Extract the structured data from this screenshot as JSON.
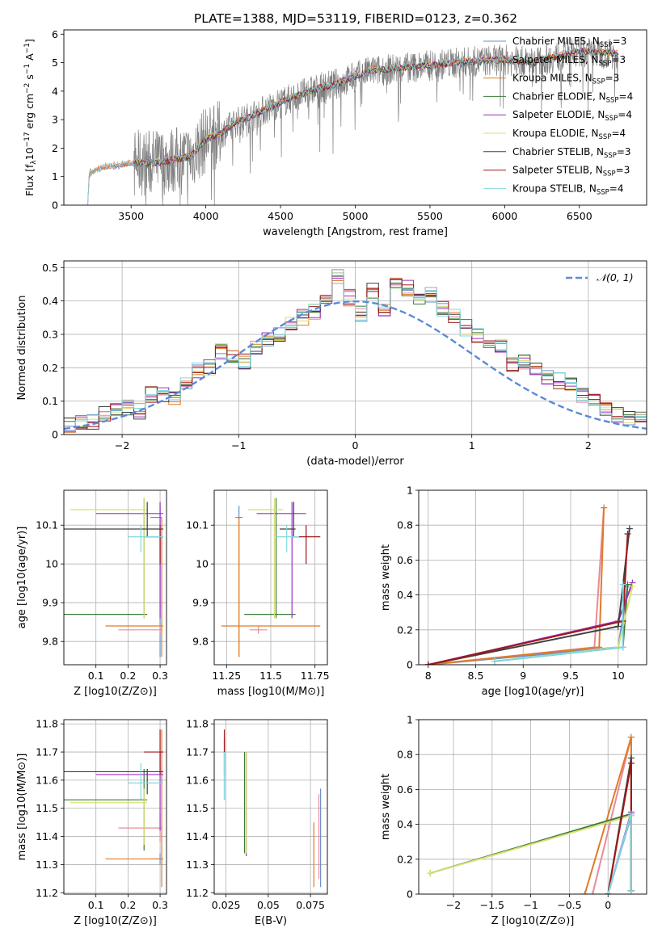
{
  "title": "PLATE=1388, MJD=53119, FIBERID=0123, z=0.362",
  "colors": {
    "Chabrier MILES": "#6a8ec8",
    "Salpeter MILES": "#e88a9a",
    "Kroupa MILES": "#e07b26",
    "Chabrier ELODIE": "#3a7a3a",
    "Salpeter ELODIE": "#9b30c0",
    "Kroupa ELODIE": "#d8e070",
    "Chabrier STELIB": "#404040",
    "Salpeter STELIB": "#a01818",
    "Kroupa STELIB": "#80d8e0",
    "data": "#808080",
    "normal": "#5b8ad8",
    "grid": "#b0b0b0"
  },
  "chart_data": [
    {
      "type": "line",
      "panel": "spectrum",
      "xlabel": "wavelength [Angstrom, rest frame]",
      "ylabel": "Flux [f$_\\lambda$10$^{-17}$ erg cm$^{-2}$ s$^{-1}$ A$^{-1}$]",
      "ylabel_parts": {
        "main": "Flux [f",
        "lam": "λ",
        "p1": "10",
        "s1": "−17",
        "p2": " erg cm",
        "s2": "−2",
        "p3": " s",
        "s3": "−1",
        "p4": " A",
        "s4": "−1",
        "p5": "]"
      },
      "xlim": [
        3050,
        6950
      ],
      "ylim": [
        0,
        6.15
      ],
      "xticks": [
        3500,
        4000,
        4500,
        5000,
        5500,
        6000,
        6500
      ],
      "yticks": [
        0,
        1,
        2,
        3,
        4,
        5,
        6
      ],
      "legend_position": "top-right",
      "legend": [
        {
          "name": "Chabrier MILES",
          "nssp": "3"
        },
        {
          "name": "Salpeter MILES",
          "nssp": "3"
        },
        {
          "name": "Kroupa MILES",
          "nssp": "3"
        },
        {
          "name": "Chabrier ELODIE",
          "nssp": "4"
        },
        {
          "name": "Salpeter ELODIE",
          "nssp": "4"
        },
        {
          "name": "Kroupa ELODIE",
          "nssp": "4"
        },
        {
          "name": "Chabrier STELIB",
          "nssp": "3"
        },
        {
          "name": "Salpeter STELIB",
          "nssp": "3"
        },
        {
          "name": "Kroupa STELIB",
          "nssp": "4"
        }
      ],
      "legend_nssp_label": "N",
      "legend_nssp_sub": "SSP",
      "continuum": [
        [
          3210,
          0
        ],
        [
          3220,
          1.1
        ],
        [
          3300,
          1.3
        ],
        [
          3500,
          1.45
        ],
        [
          3700,
          1.5
        ],
        [
          3900,
          1.7
        ],
        [
          4000,
          2.3
        ],
        [
          4100,
          2.5
        ],
        [
          4200,
          2.9
        ],
        [
          4300,
          3.1
        ],
        [
          4500,
          3.6
        ],
        [
          4700,
          4.0
        ],
        [
          4900,
          4.3
        ],
        [
          5100,
          4.7
        ],
        [
          5300,
          4.8
        ],
        [
          5500,
          4.9
        ],
        [
          5700,
          5.0
        ],
        [
          6000,
          5.1
        ],
        [
          6200,
          5.0
        ],
        [
          6500,
          5.4
        ],
        [
          6760,
          5.3
        ]
      ]
    },
    {
      "type": "bar",
      "panel": "residual histogram",
      "xlabel": "(data-model)/error",
      "ylabel": "Normed distribution",
      "xlim": [
        -2.5,
        2.5
      ],
      "ylim": [
        0,
        0.52
      ],
      "xticks": [
        -2,
        -1,
        0,
        1,
        2
      ],
      "yticks": [
        0.0,
        0.1,
        0.2,
        0.3,
        0.4,
        0.5
      ],
      "bin_width": 0.1,
      "normal_label": "𝒩(0, 1)",
      "histogram": [
        0.02,
        0.02,
        0.03,
        0.04,
        0.04,
        0.06,
        0.08,
        0.08,
        0.07,
        0.12,
        0.12,
        0.11,
        0.15,
        0.19,
        0.2,
        0.25,
        0.24,
        0.22,
        0.26,
        0.28,
        0.3,
        0.33,
        0.35,
        0.37,
        0.4,
        0.47,
        0.41,
        0.36,
        0.43,
        0.38,
        0.45,
        0.44,
        0.41,
        0.42,
        0.38,
        0.36,
        0.32,
        0.3,
        0.27,
        0.27,
        0.21,
        0.22,
        0.2,
        0.17,
        0.16,
        0.15,
        0.12,
        0.1,
        0.07,
        0.06,
        0.05,
        0.05,
        0.04,
        0.03
      ]
    },
    {
      "type": "scatter",
      "panel": "age vs Z",
      "xlabel": "Z [log10(Z/Z⊙)]",
      "ylabel": "age [log10(age/yr)]",
      "xlim": [
        0.0,
        0.32
      ],
      "ylim": [
        9.74,
        10.19
      ],
      "xticks": [
        0.1,
        0.2,
        0.3
      ],
      "yticks": [
        9.8,
        9.9,
        10.0,
        10.1
      ]
    },
    {
      "type": "scatter",
      "panel": "age vs mass",
      "xlabel": "mass [log10(M/M⊙)]",
      "ylabel": "",
      "xlim": [
        11.18,
        11.82
      ],
      "ylim": [
        9.74,
        10.19
      ],
      "xticks": [
        11.25,
        11.5,
        11.75
      ],
      "yticks": [
        9.8,
        9.9,
        10.0,
        10.1
      ]
    },
    {
      "type": "line",
      "panel": "mass weight vs age",
      "xlabel": "age [log10(age/yr)]",
      "ylabel": "mass weight",
      "xlim": [
        7.9,
        10.3
      ],
      "ylim": [
        0,
        1.0
      ],
      "xticks": [
        8.0,
        8.5,
        9.0,
        9.5,
        10.0
      ],
      "yticks": [
        0.0,
        0.2,
        0.4,
        0.6,
        0.8,
        1.0
      ]
    },
    {
      "type": "scatter",
      "panel": "mass vs Z",
      "xlabel": "Z [log10(Z/Z⊙)]",
      "ylabel": "mass [log10(M/M⊙)]",
      "xlim": [
        0.0,
        0.32
      ],
      "ylim": [
        11.195,
        11.815
      ],
      "xticks": [
        0.1,
        0.2,
        0.3
      ],
      "yticks": [
        11.2,
        11.3,
        11.4,
        11.5,
        11.6,
        11.7,
        11.8
      ]
    },
    {
      "type": "scatter",
      "panel": "mass vs E(B-V)",
      "xlabel": "E(B-V)",
      "ylabel": "",
      "xlim": [
        0.018,
        0.085
      ],
      "ylim": [
        11.195,
        11.815
      ],
      "xticks": [
        0.025,
        0.05,
        0.075
      ],
      "yticks": [
        11.2,
        11.3,
        11.4,
        11.5,
        11.6,
        11.7,
        11.8
      ]
    },
    {
      "type": "line",
      "panel": "mass weight vs Z",
      "xlabel": "Z [log10(Z/Z⊙)]",
      "ylabel": "mass weight",
      "xlim": [
        -2.45,
        0.5
      ],
      "ylim": [
        0,
        1.0
      ],
      "xticks": [
        -2.0,
        -1.5,
        -1.0,
        -0.5,
        0.0
      ],
      "yticks": [
        0.0,
        0.2,
        0.4,
        0.6,
        0.8,
        1.0
      ]
    }
  ],
  "fits": [
    {
      "name": "Chabrier MILES",
      "Z": [
        0.3,
        0.27,
        0.305
      ],
      "age": [
        10.12,
        9.76,
        10.15
      ],
      "mass": [
        11.32,
        11.3,
        11.34
      ],
      "ebv": [
        0.081,
        11.22,
        11.57
      ],
      "zv": [
        0.3,
        0.0,
        0.3
      ],
      "agew": [
        [
          8.0,
          0.0
        ],
        [
          10.0,
          0.1
        ],
        [
          10.1,
          0.45
        ]
      ]
    },
    {
      "name": "Salpeter MILES",
      "Z": [
        0.3,
        0.17,
        0.305
      ],
      "age": [
        9.83,
        9.82,
        9.84
      ],
      "mass": [
        11.43,
        11.38,
        11.48
      ],
      "ebv": [
        0.08,
        11.25,
        11.55
      ],
      "zv": [
        0.3,
        -0.2,
        0.3
      ],
      "agew": [
        [
          8.0,
          0.0
        ],
        [
          9.75,
          0.1
        ],
        [
          9.85,
          0.9
        ]
      ]
    },
    {
      "name": "Kroupa MILES",
      "Z": [
        0.305,
        0.13,
        0.31
      ],
      "age": [
        9.84,
        9.76,
        10.12
      ],
      "mass": [
        11.32,
        11.22,
        11.78
      ],
      "ebv": [
        0.077,
        11.22,
        11.45
      ],
      "zv": [
        0.3,
        -0.3,
        0.3
      ],
      "agew": [
        [
          8.0,
          0.0
        ],
        [
          9.8,
          0.1
        ],
        [
          9.85,
          0.9
        ]
      ]
    },
    {
      "name": "Chabrier ELODIE",
      "Z": [
        0.25,
        0.0,
        0.26
      ],
      "age": [
        9.87,
        9.86,
        10.17
      ],
      "mass": [
        11.53,
        11.35,
        11.64
      ],
      "ebv": [
        0.036,
        11.34,
        11.7
      ],
      "zv": [
        0.3,
        -2.3,
        0.3
      ],
      "agew": [
        [
          8.7,
          0.02
        ],
        [
          10.05,
          0.1
        ],
        [
          10.1,
          0.46
        ]
      ]
    },
    {
      "name": "Salpeter ELODIE",
      "Z": [
        0.3,
        0.1,
        0.31
      ],
      "age": [
        10.13,
        9.86,
        10.16
      ],
      "mass": [
        11.62,
        11.42,
        11.7
      ],
      "ebv": [
        0.037,
        11.33,
        11.7
      ],
      "zv": [
        0.3,
        0.0,
        0.3
      ],
      "agew": [
        [
          8.0,
          0.0
        ],
        [
          10.0,
          0.25
        ],
        [
          10.15,
          0.47
        ]
      ]
    },
    {
      "name": "Kroupa ELODIE",
      "Z": [
        0.25,
        0.02,
        0.26
      ],
      "age": [
        10.14,
        9.86,
        10.17
      ],
      "mass": [
        11.52,
        11.37,
        11.57
      ],
      "ebv": [
        0.037,
        11.34,
        11.7
      ],
      "zv": [
        0.3,
        -2.3,
        0.3
      ],
      "agew": [
        [
          8.7,
          0.02
        ],
        [
          10.0,
          0.1
        ],
        [
          10.15,
          0.45
        ]
      ]
    },
    {
      "name": "Chabrier STELIB",
      "Z": [
        0.26,
        0.0,
        0.31
      ],
      "age": [
        10.09,
        10.07,
        10.16
      ],
      "mass": [
        11.63,
        11.55,
        11.64
      ],
      "ebv": [
        0.024,
        11.53,
        11.75
      ],
      "zv": [
        0.3,
        0.0,
        0.3
      ],
      "agew": [
        [
          8.0,
          0.0
        ],
        [
          10.0,
          0.22
        ],
        [
          10.12,
          0.78
        ]
      ]
    },
    {
      "name": "Salpeter STELIB",
      "Z": [
        0.3,
        0.25,
        0.31
      ],
      "age": [
        10.07,
        10.0,
        10.1
      ],
      "mass": [
        11.7,
        11.62,
        11.78
      ],
      "ebv": [
        0.024,
        11.62,
        11.78
      ],
      "zv": [
        0.3,
        0.0,
        0.3
      ],
      "agew": [
        [
          8.0,
          0.0
        ],
        [
          10.05,
          0.25
        ],
        [
          10.1,
          0.75
        ]
      ]
    },
    {
      "name": "Kroupa STELIB",
      "Z": [
        0.24,
        0.2,
        0.31
      ],
      "age": [
        10.07,
        10.03,
        10.1
      ],
      "mass": [
        11.59,
        11.53,
        11.66
      ],
      "ebv": [
        0.024,
        11.53,
        11.7
      ],
      "zv": [
        0.3,
        0.0,
        0.3
      ],
      "agew": [
        [
          8.7,
          0.02
        ],
        [
          10.05,
          0.1
        ],
        [
          10.05,
          0.46
        ]
      ]
    }
  ]
}
